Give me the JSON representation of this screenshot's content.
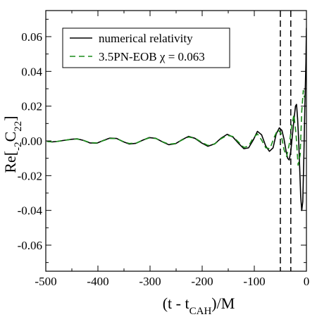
{
  "chart_data": {
    "type": "line",
    "xlabel": "(t - t_CAH)/M",
    "ylabel": "Re[_-2C_22]",
    "xlim": [
      -500,
      0
    ],
    "ylim": [
      -0.075,
      0.075
    ],
    "xticks": [
      -500,
      -400,
      -300,
      -200,
      -100,
      0
    ],
    "xtick_labels": [
      "-500",
      "-400",
      "-300",
      "-200",
      "-100",
      "0"
    ],
    "yticks": [
      -0.06,
      -0.04,
      -0.02,
      0.0,
      0.02,
      0.04,
      0.06
    ],
    "ytick_labels": [
      "-0.06",
      "-0.04",
      "-0.02",
      "0.00",
      "0.02",
      "0.04",
      "0.06"
    ],
    "grid": false,
    "legend_position": "top-left",
    "vertical_lines": [
      -50,
      -30
    ],
    "series": [
      {
        "name": "numerical relativity",
        "color": "#000000",
        "style": "solid",
        "x": [
          -498,
          -488,
          -478,
          -465,
          -452,
          -440,
          -428,
          -415,
          -402,
          -390,
          -377,
          -364,
          -352,
          -340,
          -327,
          -314,
          -302,
          -289,
          -276,
          -264,
          -251,
          -238,
          -226,
          -214,
          -201,
          -189,
          -176,
          -164,
          -152,
          -141,
          -130,
          -120,
          -111,
          -102,
          -94,
          -86,
          -78,
          -71,
          -64,
          -58,
          -52,
          -47,
          -43,
          -39,
          -36,
          -33,
          -30,
          -27,
          -24,
          -21,
          -19,
          -17,
          -15,
          -13,
          -11,
          -9,
          -7,
          -5,
          -3,
          -1,
          0
        ],
        "y": [
          -0.0003,
          -0.0006,
          -0.0003,
          0.0003,
          0.0009,
          0.0012,
          0.0003,
          -0.0012,
          -0.0013,
          0.0002,
          0.0016,
          0.0014,
          -0.0004,
          -0.0018,
          -0.0014,
          0.0004,
          0.0019,
          0.0015,
          -0.0006,
          -0.0022,
          -0.0016,
          0.0008,
          0.0026,
          0.0015,
          -0.0012,
          -0.0031,
          -0.0017,
          0.0015,
          0.0038,
          0.0022,
          -0.0015,
          -0.0045,
          -0.004,
          0.0005,
          0.0055,
          0.0035,
          -0.003,
          -0.006,
          -0.004,
          0.004,
          0.0075,
          0.006,
          0.001,
          -0.006,
          -0.01,
          -0.011,
          -0.006,
          0.003,
          0.012,
          0.02,
          0.021,
          0.013,
          0.001,
          -0.015,
          -0.032,
          -0.04,
          -0.035,
          -0.01,
          0.02,
          0.045,
          0.065
        ]
      },
      {
        "name": "3.5PN-EOB χ = 0.063",
        "color": "#1a8c1a",
        "style": "dashed",
        "x": [
          -498,
          -488,
          -478,
          -465,
          -452,
          -440,
          -428,
          -415,
          -402,
          -390,
          -377,
          -364,
          -352,
          -340,
          -327,
          -314,
          -302,
          -289,
          -276,
          -264,
          -251,
          -238,
          -226,
          -214,
          -201,
          -189,
          -176,
          -164,
          -152,
          -141,
          -130,
          -120,
          -111,
          -102,
          -94,
          -86,
          -78,
          -70,
          -62,
          -55,
          -49,
          -43,
          -38,
          -33,
          -28,
          -24,
          -20,
          -16,
          -12,
          -9,
          -6,
          -4
        ],
        "y": [
          -0.0003,
          -0.0006,
          -0.0003,
          0.0003,
          0.0008,
          0.0011,
          0.0003,
          -0.001,
          -0.0012,
          0.0001,
          0.0014,
          0.0013,
          -0.0003,
          -0.0015,
          -0.0013,
          0.0004,
          0.0017,
          0.0014,
          -0.0005,
          -0.0019,
          -0.0015,
          0.0006,
          0.0022,
          0.0016,
          -0.0008,
          -0.0026,
          -0.0018,
          0.0012,
          0.0032,
          0.0025,
          -0.0008,
          -0.0038,
          -0.003,
          0.0018,
          0.004,
          0.0005,
          -0.004,
          -0.0045,
          0.002,
          0.0065,
          0.0045,
          -0.005,
          -0.009,
          -0.002,
          0.009,
          0.015,
          0.004,
          -0.014,
          -0.008,
          0.017,
          0.029,
          0.025
        ]
      }
    ]
  }
}
